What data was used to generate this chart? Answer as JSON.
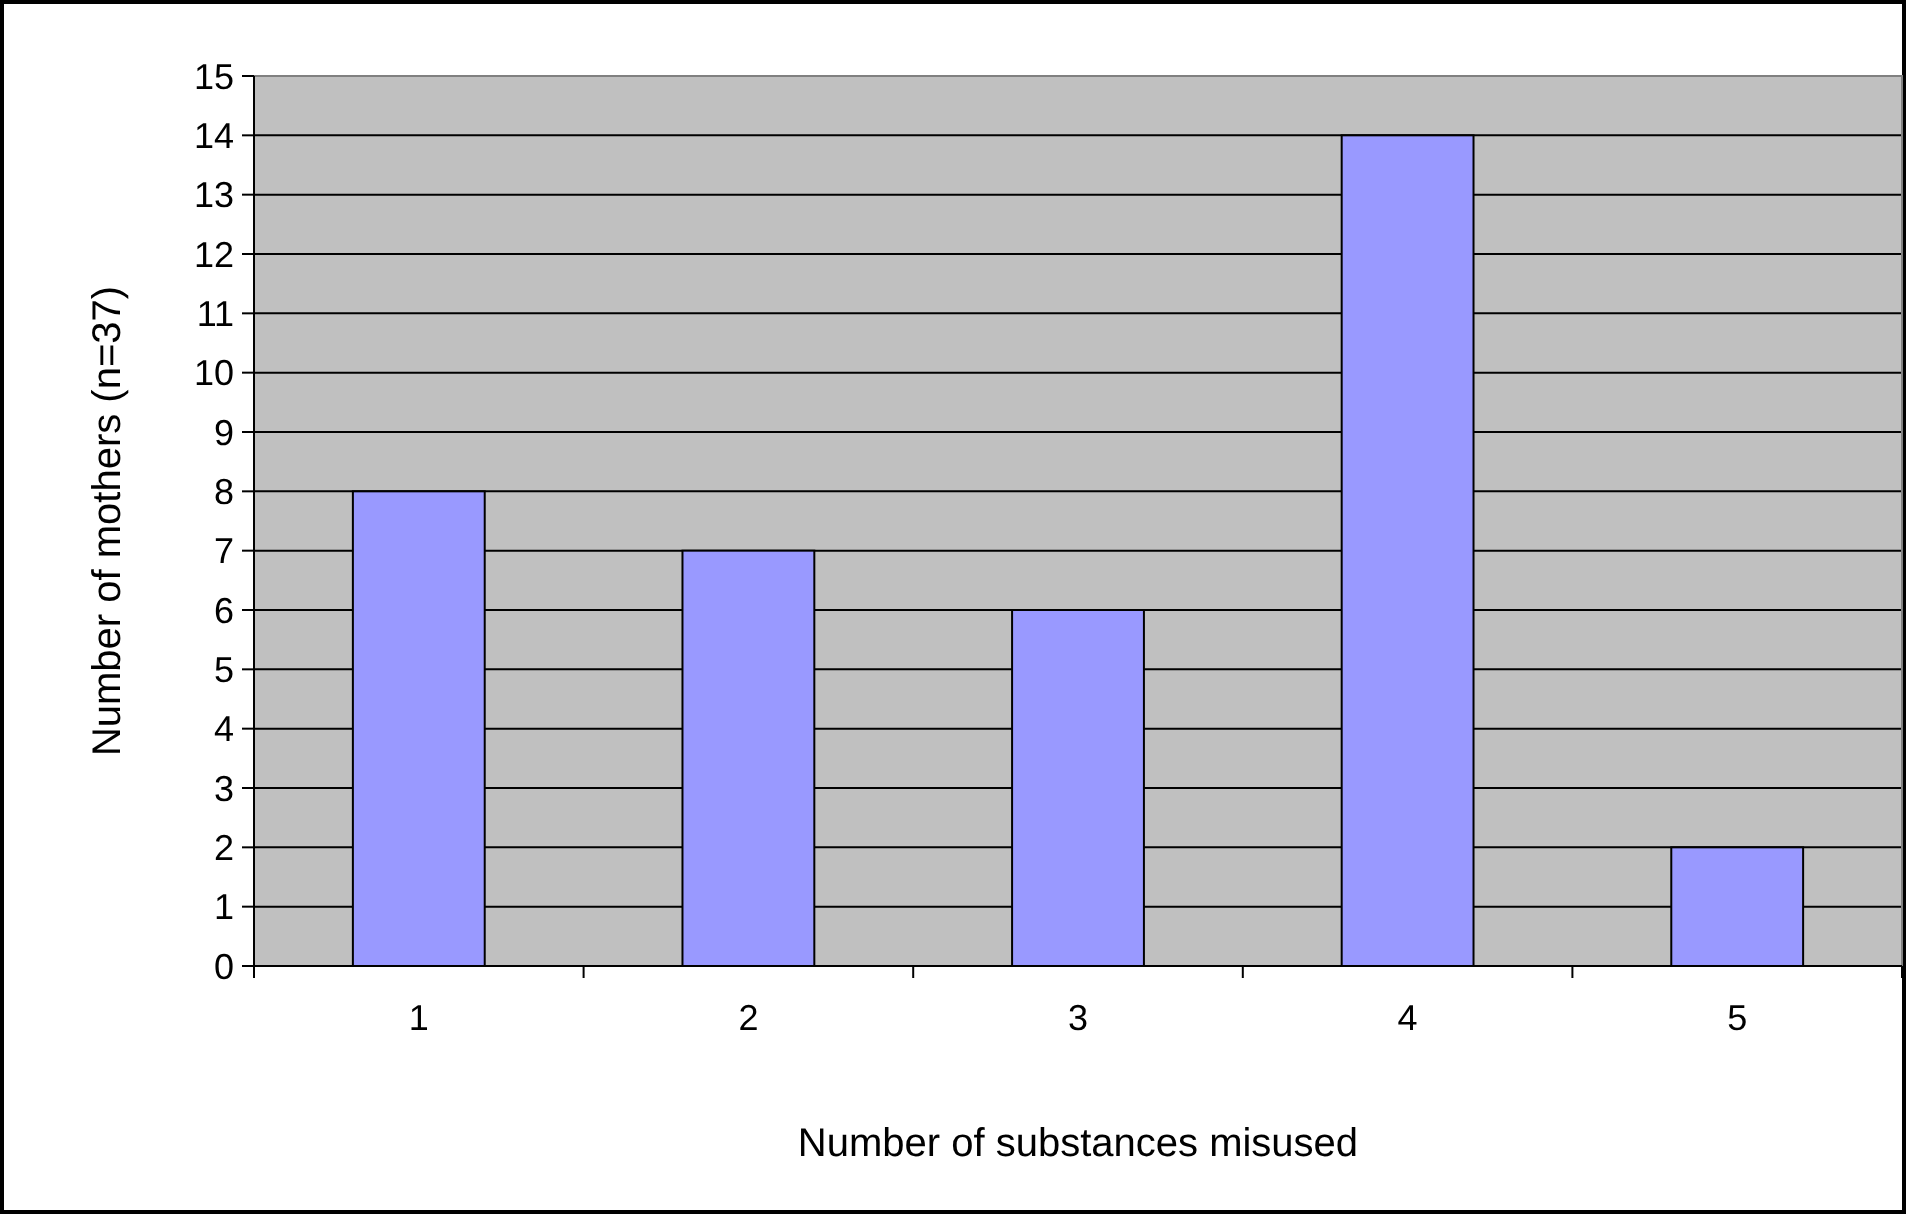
{
  "chart_data": {
    "type": "bar",
    "xlabel": "Number of substances misused",
    "ylabel": "Number of mothers (n=37)",
    "categories": [
      "1",
      "2",
      "3",
      "4",
      "5"
    ],
    "values": [
      8,
      7,
      6,
      14,
      2
    ],
    "color": "#9999ff",
    "ylim": [
      0,
      15
    ],
    "yticks": [
      0,
      1,
      2,
      3,
      4,
      5,
      6,
      7,
      8,
      9,
      10,
      11,
      12,
      13,
      14,
      15
    ],
    "grid": "y"
  }
}
